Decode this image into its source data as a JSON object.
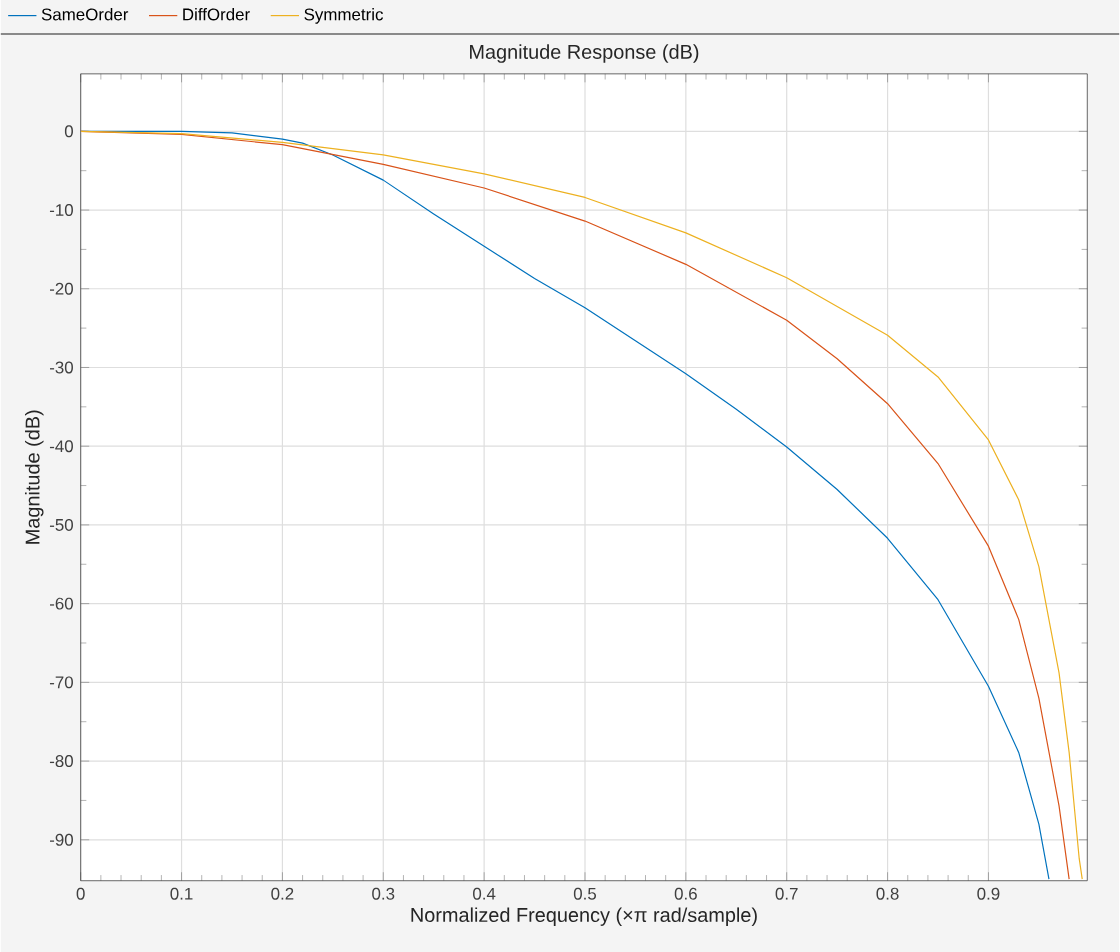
{
  "chart_data": {
    "type": "line",
    "title": "Magnitude Response (dB)",
    "xlabel": "Normalized Frequency (×π rad/sample)",
    "ylabel": "Magnitude (dB)",
    "xlim": [
      0,
      0.998
    ],
    "ylim": [
      -95.2,
      7.3
    ],
    "xticks": [
      0,
      0.1,
      0.2,
      0.3,
      0.4,
      0.5,
      0.6,
      0.7,
      0.8,
      0.9
    ],
    "yticks": [
      0,
      -10,
      -20,
      -30,
      -40,
      -50,
      -60,
      -70,
      -80,
      -90
    ],
    "grid": true,
    "legend": "top left",
    "series": [
      {
        "name": "SameOrder",
        "color": "#0072bd",
        "x": [
          0,
          0.05,
          0.1,
          0.15,
          0.2,
          0.22,
          0.25,
          0.3,
          0.35,
          0.4,
          0.45,
          0.5,
          0.55,
          0.6,
          0.65,
          0.7,
          0.75,
          0.8,
          0.85,
          0.9,
          0.93,
          0.95,
          0.96
        ],
        "values": [
          0,
          0,
          0,
          -0.2,
          -1,
          -1.5,
          -3,
          -6.2,
          -10.5,
          -14.6,
          -18.7,
          -22.4,
          -26.6,
          -30.8,
          -35.3,
          -40.1,
          -45.5,
          -51.7,
          -59.5,
          -70.5,
          -78.9,
          -88,
          -95
        ]
      },
      {
        "name": "DiffOrder",
        "color": "#d95319",
        "x": [
          0,
          0.1,
          0.2,
          0.3,
          0.4,
          0.5,
          0.6,
          0.7,
          0.75,
          0.8,
          0.85,
          0.9,
          0.93,
          0.95,
          0.97,
          0.98
        ],
        "values": [
          0,
          -0.4,
          -1.7,
          -4.2,
          -7.2,
          -11.4,
          -16.9,
          -24,
          -28.9,
          -34.6,
          -42.2,
          -52.7,
          -62,
          -72,
          -85.7,
          -95
        ]
      },
      {
        "name": "Symmetric",
        "color": "#edb120",
        "x": [
          0,
          0.1,
          0.2,
          0.3,
          0.4,
          0.5,
          0.6,
          0.7,
          0.8,
          0.85,
          0.9,
          0.93,
          0.95,
          0.97,
          0.98,
          0.99,
          0.993
        ],
        "values": [
          0,
          -0.3,
          -1.4,
          -3,
          -5.4,
          -8.4,
          -12.9,
          -18.6,
          -25.9,
          -31.2,
          -39.2,
          -46.8,
          -55.3,
          -68.8,
          -78.9,
          -92.4,
          -95
        ]
      }
    ]
  }
}
